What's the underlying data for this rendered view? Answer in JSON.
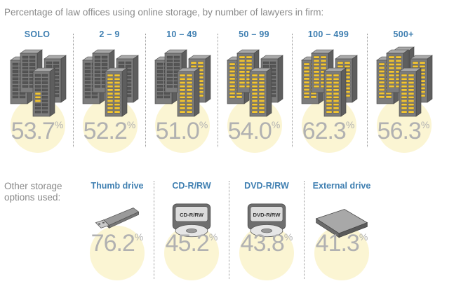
{
  "title": "Percentage of law offices using online storage, by number of lawyers in firm:",
  "other_label_line1": "Other storage",
  "other_label_line2": "options used:",
  "percent_sign": "%",
  "colors": {
    "accent_blue": "#3f7fb1",
    "circle": "#fbf5d3",
    "value_gray": "#b1b1b1",
    "server_gray": "#7c7c7c",
    "lit": "#f3c633"
  },
  "chart_data": [
    {
      "type": "bar",
      "title": "Percentage of law offices using online storage, by number of lawyers in firm:",
      "categories": [
        "SOLO",
        "2 – 9",
        "10 – 49",
        "50 – 99",
        "100 – 499",
        "500+"
      ],
      "values": [
        53.7,
        52.2,
        51.0,
        54.0,
        62.3,
        56.3
      ],
      "value_labels": [
        "53.7",
        "52.2",
        "51.0",
        "54.0",
        "62.3",
        "56.3"
      ],
      "icons": [
        "server-icon",
        "server-icon",
        "server-icon",
        "server-icon",
        "server-icon",
        "server-icon"
      ]
    },
    {
      "type": "bar",
      "title": "Other storage options used:",
      "categories": [
        "Thumb drive",
        "CD-R/RW",
        "DVD-R/RW",
        "External drive"
      ],
      "values": [
        76.2,
        45.2,
        43.8,
        41.3
      ],
      "value_labels": [
        "76.2",
        "45.2",
        "43.8",
        "41.3"
      ],
      "icons": [
        "usb-drive-icon",
        "cd-icon",
        "dvd-icon",
        "external-drive-icon"
      ],
      "disc_labels": [
        "",
        "CD-R/RW",
        "DVD-R/RW",
        ""
      ]
    }
  ]
}
